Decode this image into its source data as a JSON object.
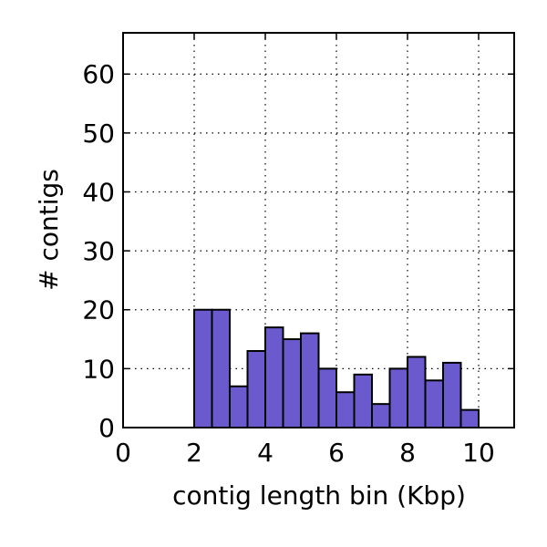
{
  "chart_data": {
    "type": "bar",
    "bin_width": 0.5,
    "bin_starts": [
      0,
      0.5,
      1.0,
      1.5,
      2.0,
      2.5,
      3.0,
      3.5,
      4.0,
      4.5,
      5.0,
      5.5,
      6.0,
      6.5,
      7.0,
      7.5,
      8.0,
      8.5,
      9.0,
      9.5,
      10.0,
      10.5
    ],
    "values": [
      0,
      0,
      0,
      0,
      20,
      20,
      7,
      13,
      17,
      15,
      16,
      10,
      6,
      9,
      4,
      10,
      12,
      8,
      11,
      3,
      0,
      0
    ],
    "bar_color": "#6a5acd",
    "title": "",
    "xlabel": "contig length bin (Kbp)",
    "ylabel": "# contigs",
    "xlim": [
      0,
      11
    ],
    "ylim": [
      0,
      67
    ],
    "xticks": [
      0,
      2,
      4,
      6,
      8,
      10
    ],
    "yticks": [
      0,
      10,
      20,
      30,
      40,
      50,
      60
    ],
    "grid": true
  }
}
